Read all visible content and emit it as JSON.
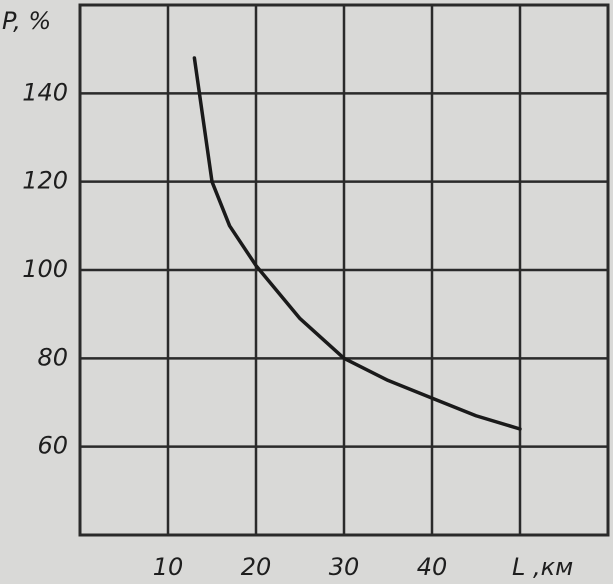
{
  "chart_data": {
    "type": "line",
    "y_label": "P, %",
    "x_label": "L ,км",
    "x": [
      13,
      15,
      17,
      20,
      25,
      30,
      35,
      40,
      45,
      50
    ],
    "series": [
      {
        "color": "#1a1a1a",
        "values": [
          148,
          120,
          110,
          101,
          89,
          80,
          75,
          71,
          67,
          64
        ]
      }
    ],
    "xlim": [
      0,
      60
    ],
    "xticks": [
      10,
      20,
      30,
      40
    ],
    "ylim": [
      40,
      160
    ],
    "yticks": [
      60,
      80,
      100,
      120,
      140
    ],
    "grid": true
  }
}
